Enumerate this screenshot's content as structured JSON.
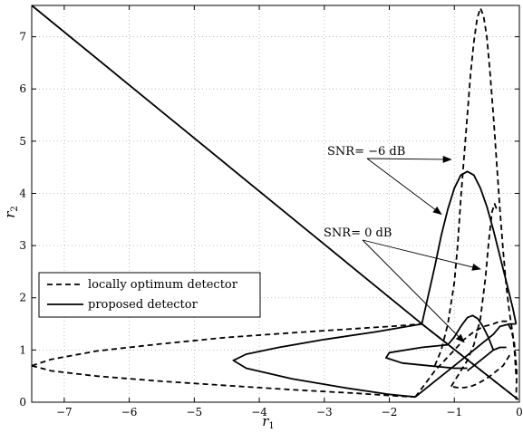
{
  "chart_data": {
    "type": "line",
    "xlabel": "r",
    "xlabel_sub": "1",
    "ylabel": "r",
    "ylabel_sub": "2",
    "xlim": [
      -7.5,
      0
    ],
    "ylim": [
      0,
      7.6
    ],
    "grid": true,
    "x_ticks": [
      -7,
      -6,
      -5,
      -4,
      -3,
      -2,
      -1,
      0
    ],
    "x_tick_labels": [
      "−7",
      "−6",
      "−5",
      "−4",
      "−3",
      "−2",
      "−1",
      "0"
    ],
    "y_ticks": [
      0,
      1,
      2,
      3,
      4,
      5,
      6,
      7
    ],
    "y_tick_labels": [
      "0",
      "1",
      "2",
      "3",
      "4",
      "5",
      "6",
      "7"
    ],
    "legend": {
      "placement": "lower-left",
      "entries": [
        {
          "label": "locally optimum detector",
          "style": "dashed"
        },
        {
          "label": "proposed detector",
          "style": "solid"
        }
      ]
    },
    "annotations": [
      {
        "text": "SNR= −6 dB",
        "arrow_targets": [
          [
            -1.05,
            4.65
          ],
          [
            -1.2,
            3.6
          ]
        ]
      },
      {
        "text": "SNR= 0 dB",
        "arrow_targets": [
          [
            -0.6,
            2.55
          ],
          [
            -0.85,
            1.15
          ]
        ]
      }
    ],
    "series": [
      {
        "style": "solid",
        "x": [
          -7.5,
          -1.5,
          -0.02
        ],
        "y": [
          7.6,
          1.5,
          0.05
        ]
      },
      {
        "style": "dashed",
        "x": [
          -1.5,
          -0.02
        ],
        "y": [
          1.5,
          0.05
        ]
      },
      {
        "style": "dashed",
        "x": [
          -7.5,
          -7.2,
          -6.5,
          -5.5,
          -4.5,
          -3.5,
          -2.5,
          -1.9,
          -1.5
        ],
        "y": [
          0.7,
          0.82,
          0.98,
          1.12,
          1.24,
          1.33,
          1.41,
          1.46,
          1.5
        ]
      },
      {
        "style": "dashed",
        "x": [
          -7.5,
          -7.2,
          -6.5,
          -5.5,
          -4.5,
          -3.5,
          -2.5,
          -1.9,
          -1.6
        ],
        "y": [
          0.7,
          0.6,
          0.5,
          0.4,
          0.32,
          0.24,
          0.17,
          0.12,
          0.1
        ]
      },
      {
        "style": "dashed",
        "x": [
          -1.6,
          -1.45,
          -1.3,
          -1.15,
          -1.0,
          -0.85,
          -0.7,
          -0.55,
          -0.4,
          -0.3,
          -0.2,
          -0.13,
          -0.08,
          -0.04,
          -0.05
        ],
        "y": [
          0.1,
          0.35,
          0.6,
          0.8,
          1.0,
          1.2,
          1.35,
          1.45,
          1.5,
          1.55,
          1.55,
          1.4,
          1.15,
          0.6,
          0.05
        ]
      },
      {
        "style": "dashed",
        "x": [
          -1.3,
          -1.2,
          -1.1,
          -1.0,
          -0.95,
          -0.9,
          -0.85,
          -0.8,
          -0.75,
          -0.7,
          -0.65,
          -0.6,
          -0.55,
          -0.5,
          -0.45,
          -0.4,
          -0.35,
          -0.3,
          -0.25,
          -0.2,
          -0.15,
          -0.1,
          -0.07,
          -0.05
        ],
        "y": [
          0.7,
          1.0,
          1.5,
          2.3,
          3.0,
          3.9,
          4.7,
          5.5,
          6.3,
          6.9,
          7.35,
          7.55,
          7.4,
          7.0,
          6.3,
          5.5,
          4.6,
          3.7,
          2.9,
          2.2,
          1.7,
          1.3,
          0.9,
          0.5
        ]
      },
      {
        "style": "dashed",
        "x": [
          -1.05,
          -0.9,
          -0.8,
          -0.7,
          -0.6,
          -0.52,
          -0.47,
          -0.42,
          -0.38,
          -0.35
        ],
        "y": [
          0.3,
          0.6,
          0.8,
          1.1,
          1.6,
          2.4,
          3.1,
          3.65,
          3.8,
          3.7
        ]
      },
      {
        "style": "dashed",
        "x": [
          -0.15,
          -0.25,
          -0.35,
          -0.45,
          -0.55,
          -0.65,
          -0.75,
          -0.85,
          -0.95,
          -1.05
        ],
        "y": [
          0.9,
          0.7,
          0.6,
          0.5,
          0.42,
          0.35,
          0.3,
          0.28,
          0.28,
          0.3
        ]
      },
      {
        "style": "solid",
        "x": [
          -1.5,
          -2.2,
          -3.0,
          -3.7,
          -4.2,
          -4.4,
          -4.2,
          -3.5,
          -2.7,
          -2.0,
          -1.6
        ],
        "y": [
          1.5,
          1.35,
          1.2,
          1.05,
          0.92,
          0.8,
          0.65,
          0.45,
          0.28,
          0.15,
          0.1
        ]
      },
      {
        "style": "solid",
        "x": [
          -1.6,
          -1.3,
          -1.0,
          -0.75,
          -0.55,
          -0.4,
          -0.3,
          -0.15,
          -0.05
        ],
        "y": [
          0.1,
          0.4,
          0.7,
          0.95,
          1.15,
          1.3,
          1.45,
          1.5,
          1.5
        ]
      },
      {
        "style": "solid",
        "x": [
          -1.5,
          -1.3,
          -1.2,
          -1.1,
          -1.0,
          -0.9,
          -0.8,
          -0.7,
          -0.6,
          -0.5,
          -0.4,
          -0.3,
          -0.2,
          -0.1,
          -0.05
        ],
        "y": [
          1.5,
          2.6,
          3.2,
          3.7,
          4.1,
          4.35,
          4.42,
          4.35,
          4.1,
          3.75,
          3.3,
          2.8,
          2.3,
          1.8,
          1.5
        ]
      },
      {
        "style": "solid",
        "x": [
          -1.1,
          -1.0,
          -0.9,
          -0.8,
          -0.72,
          -0.64,
          -0.56,
          -0.48,
          -0.4
        ],
        "y": [
          1.1,
          1.25,
          1.45,
          1.62,
          1.66,
          1.6,
          1.45,
          1.25,
          1.0
        ]
      },
      {
        "style": "solid",
        "x": [
          -1.1,
          -1.5,
          -2.0,
          -2.05,
          -1.8,
          -1.4,
          -1.0,
          -0.8
        ],
        "y": [
          1.1,
          1.05,
          0.95,
          0.85,
          0.75,
          0.7,
          0.65,
          0.65
        ]
      },
      {
        "style": "solid",
        "x": [
          -0.8,
          -0.6,
          -0.4,
          -0.3,
          -0.2
        ],
        "y": [
          0.6,
          0.8,
          1.0,
          1.05,
          1.05
        ]
      }
    ]
  }
}
